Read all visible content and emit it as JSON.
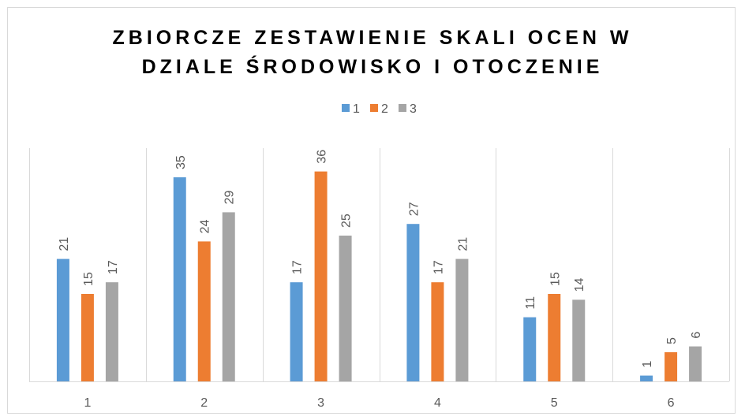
{
  "chart_data": {
    "type": "bar",
    "title": "ZBIORCZE ZESTAWIENIE SKALI OCEN W DZIALE ŚRODOWISKO I OTOCZENIE",
    "categories": [
      "1",
      "2",
      "3",
      "4",
      "5",
      "6"
    ],
    "series": [
      {
        "name": "1",
        "color": "#5b9bd5",
        "values": [
          21,
          35,
          17,
          27,
          11,
          1
        ]
      },
      {
        "name": "2",
        "color": "#ed7d31",
        "values": [
          15,
          24,
          36,
          17,
          15,
          5
        ]
      },
      {
        "name": "3",
        "color": "#a5a5a5",
        "values": [
          17,
          29,
          25,
          21,
          14,
          6
        ]
      }
    ],
    "ylim": [
      0,
      40
    ],
    "legend": "top"
  }
}
